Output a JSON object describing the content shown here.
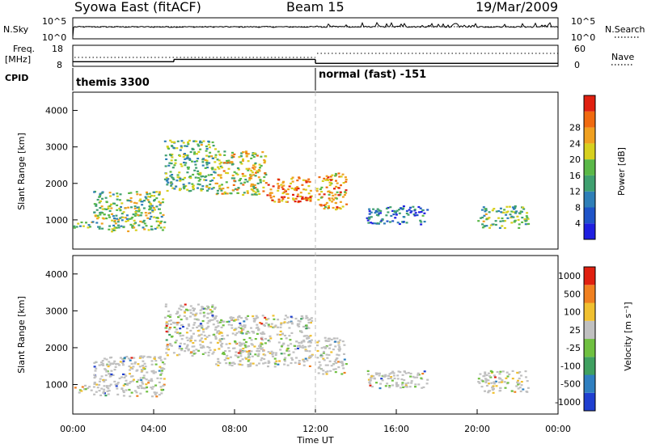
{
  "header": {
    "title": "Syowa East (fitACF)",
    "beam": "Beam 15",
    "date": "19/Mar/2009"
  },
  "top_panels": {
    "nsky_label": "N.Sky",
    "nsearch_label": "N.Search",
    "ns_ticks": [
      "10^5",
      "10^0"
    ],
    "ns_right_ticks": [
      "10^5",
      "10^0"
    ],
    "freq_label_1": "Freq.",
    "freq_label_2": "[MHz]",
    "freq_ticks": [
      "18",
      "8"
    ],
    "nave_label": "Nave",
    "nave_ticks": [
      "60",
      "0"
    ],
    "cpid_label": "CPID",
    "cpid_segments": [
      {
        "label": "themis 3300",
        "start_h": 0,
        "end_h": 12
      },
      {
        "label": "normal (fast) -151",
        "start_h": 12,
        "end_h": 24
      }
    ],
    "freq_steps": [
      {
        "start_h": 0,
        "end_h": 5,
        "mhz": 10.2
      },
      {
        "start_h": 5,
        "end_h": 12,
        "mhz": 11.3
      },
      {
        "start_h": 12,
        "end_h": 24,
        "mhz": 9.4
      }
    ]
  },
  "chart_data": [
    {
      "type": "heatmap",
      "name": "power",
      "ylabel": "Slant Range [km]",
      "xlim": [
        0,
        24
      ],
      "ylim": [
        200,
        4500
      ],
      "y_ticks": [
        "1000",
        "2000",
        "3000",
        "4000"
      ],
      "colorbar_label": "Power [dB]",
      "colorbar_ticks": [
        "4",
        "8",
        "12",
        "16",
        "20",
        "24",
        "28"
      ],
      "colorbar_colors": [
        "#1f1fe0",
        "#1f54c8",
        "#2f7fb8",
        "#3fa070",
        "#5ab848",
        "#d7d01e",
        "#f0a020",
        "#f06a10",
        "#e02010"
      ],
      "regions": [
        {
          "t": [
            0,
            1
          ],
          "r": [
            800,
            1000
          ],
          "level": 0.5
        },
        {
          "t": [
            1,
            4.5
          ],
          "r": [
            700,
            1800
          ],
          "level": 0.5
        },
        {
          "t": [
            4.5,
            7
          ],
          "r": [
            1800,
            3200
          ],
          "level": 0.45
        },
        {
          "t": [
            7,
            9.5
          ],
          "r": [
            1700,
            2900
          ],
          "level": 0.6
        },
        {
          "t": [
            9.5,
            11.8
          ],
          "r": [
            1500,
            2200
          ],
          "level": 0.85
        },
        {
          "t": [
            12,
            13.5
          ],
          "r": [
            1300,
            2300
          ],
          "level": 0.75
        },
        {
          "t": [
            14.5,
            17.5
          ],
          "r": [
            900,
            1400
          ],
          "level": 0.2
        },
        {
          "t": [
            20,
            22.5
          ],
          "r": [
            800,
            1400
          ],
          "level": 0.45
        }
      ]
    },
    {
      "type": "heatmap",
      "name": "velocity",
      "ylabel": "Slant Range [km]",
      "xlabel": "Time UT",
      "xlim": [
        0,
        24
      ],
      "ylim": [
        200,
        4500
      ],
      "x_ticks": [
        "00:00",
        "04:00",
        "08:00",
        "12:00",
        "16:00",
        "20:00",
        "00:00"
      ],
      "y_ticks": [
        "1000",
        "2000",
        "3000",
        "4000"
      ],
      "colorbar_label": "Velocity [m s⁻¹]",
      "colorbar_ticks": [
        "1000",
        "500",
        "100",
        "25",
        "-25",
        "-100",
        "-500",
        "-1000"
      ],
      "colorbar_colors": [
        "#1f3fd0",
        "#2f7fc0",
        "#3fa060",
        "#6fc040",
        "#c0c0c0",
        "#f0c030",
        "#f08020",
        "#e02010"
      ],
      "regions": [
        {
          "t": [
            0,
            1
          ],
          "r": [
            800,
            1000
          ],
          "level": 0.5
        },
        {
          "t": [
            1,
            4.5
          ],
          "r": [
            700,
            1800
          ],
          "level": 0.55
        },
        {
          "t": [
            4.5,
            7
          ],
          "r": [
            1800,
            3200
          ],
          "level": 0.5
        },
        {
          "t": [
            7,
            11.8
          ],
          "r": [
            1500,
            2900
          ],
          "level": 0.5
        },
        {
          "t": [
            12,
            13.5
          ],
          "r": [
            1300,
            2300
          ],
          "level": 0.5
        },
        {
          "t": [
            14.5,
            17.5
          ],
          "r": [
            900,
            1400
          ],
          "level": 0.5
        },
        {
          "t": [
            20,
            22.5
          ],
          "r": [
            800,
            1400
          ],
          "level": 0.5
        }
      ]
    }
  ]
}
